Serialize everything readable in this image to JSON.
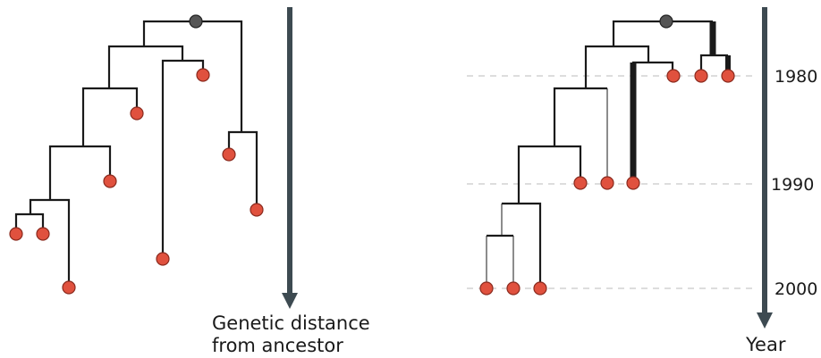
{
  "left_panel": {
    "axis_label_line1": "Genetic distance",
    "axis_label_line2": "from ancestor"
  },
  "right_panel": {
    "axis_label": "Year",
    "year_ticks": [
      "1980",
      "1990",
      "2000"
    ]
  },
  "colors": {
    "branch": "#1a1a1a",
    "arrow": "#3d4a51",
    "tip_fill": "#e0513e",
    "tip_stroke": "#8a2a1e",
    "root_fill": "#555555",
    "dash": "#bbbbbb"
  }
}
